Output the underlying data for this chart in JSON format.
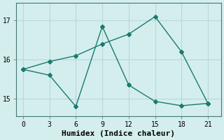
{
  "xlabel": "Humidex (Indice chaleur)",
  "ylabel": "",
  "background_color": "#d4eeee",
  "grid_color": "#b8d8d8",
  "line_color": "#1a7a6e",
  "series1_x": [
    0,
    3,
    6,
    9,
    12,
    15,
    18,
    21
  ],
  "series1_y": [
    15.75,
    15.95,
    16.1,
    16.4,
    16.65,
    17.1,
    16.2,
    14.88
  ],
  "series2_x": [
    0,
    3,
    6,
    9,
    12,
    15,
    18,
    21
  ],
  "series2_y": [
    15.75,
    15.6,
    14.8,
    16.85,
    15.35,
    14.93,
    14.82,
    14.88
  ],
  "xlim": [
    -0.8,
    22.5
  ],
  "ylim": [
    14.55,
    17.45
  ],
  "xticks": [
    0,
    3,
    6,
    9,
    12,
    15,
    18,
    21
  ],
  "yticks": [
    15,
    16,
    17
  ],
  "marker": "D",
  "marker_size": 3,
  "linewidth": 1.0,
  "tick_fontsize": 7,
  "label_fontsize": 8
}
